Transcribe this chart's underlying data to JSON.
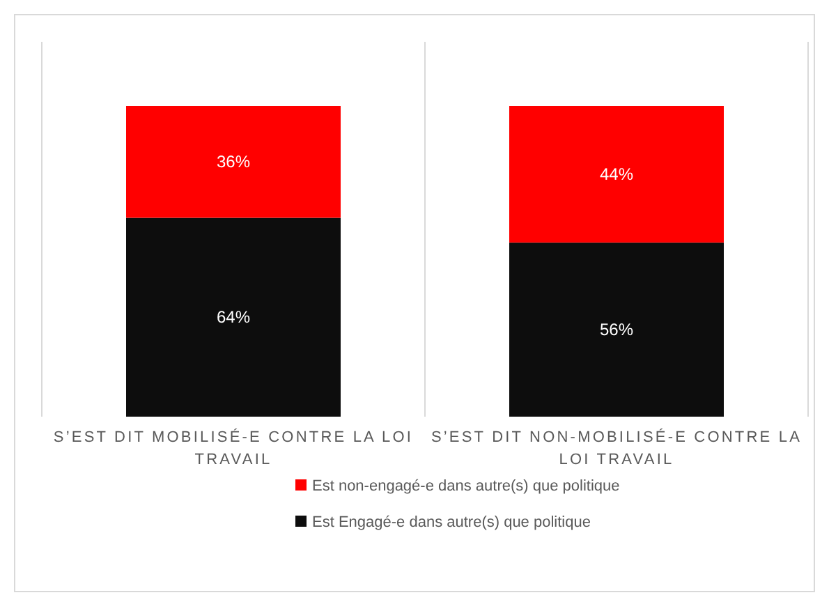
{
  "chart_data": {
    "type": "bar",
    "stacked": true,
    "categories": [
      "S’EST DIT MOBILISÉ-E CONTRE  LA LOI TRAVAIL",
      "S’EST DIT NON-MOBILISÉ-E CONTRE LA LOI TRAVAIL"
    ],
    "ylim": [
      0,
      100
    ],
    "legend": "bottom",
    "series": [
      {
        "name": "Est Engagé-e dans autre(s) que politique",
        "color": "#0d0d0d",
        "values": [
          64,
          56
        ],
        "value_labels": [
          "64%",
          "56%"
        ]
      },
      {
        "name": "Est non-engagé-e dans autre(s) que politique",
        "color": "#ff0000",
        "values": [
          36,
          44
        ],
        "value_labels": [
          "36%",
          "44%"
        ]
      }
    ]
  }
}
